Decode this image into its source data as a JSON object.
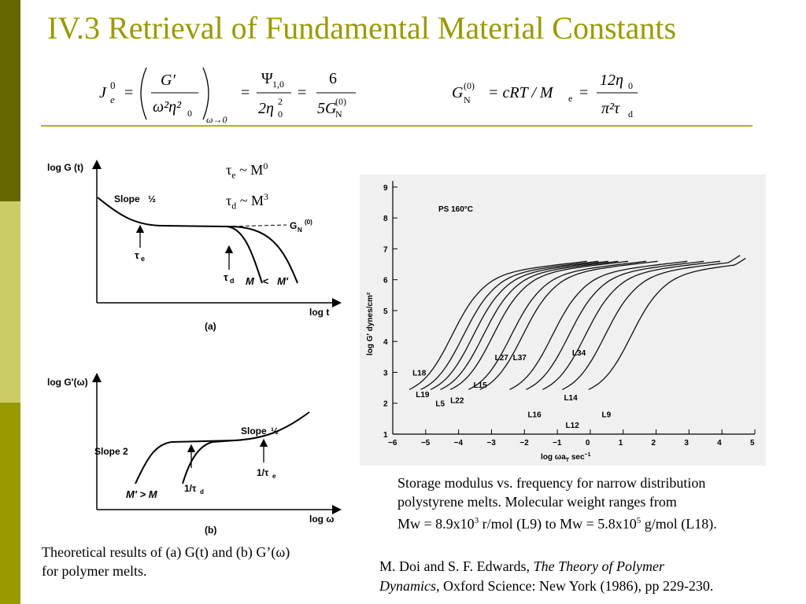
{
  "title": "IV.3 Retrieval of Fundamental Material Constants",
  "colors": {
    "title": "#999900",
    "rule": "#b3b300",
    "sidebar": [
      "#666600",
      "#cccc66",
      "#999900"
    ]
  },
  "equation1": {
    "lhs": "J",
    "lhs_sup": "0",
    "lhs_sub": "e",
    "frac_num": "G′",
    "frac_den": "ω²η²",
    "frac_den_sub": "0",
    "limit": "ω→0",
    "psi": "Ψ",
    "psi_sub": "1,0",
    "psi_den": "2η",
    "psi_den_sup": "2",
    "psi_den_sub": "0",
    "six": "6",
    "five_g": "5G",
    "five_g_sub": "N",
    "five_g_sup": "(0)"
  },
  "equation2": {
    "g": "G",
    "g_sub": "N",
    "g_sup": "(0)",
    "rhs": "= cRT / M",
    "m_sub": "e",
    "num": "12η",
    "num_sub": "0",
    "den": "π²τ",
    "den_sub": "d"
  },
  "scaling": {
    "tau_e": "τ",
    "tau_e_sub": "e",
    "tau_e_rel": " ~ M",
    "tau_e_sup": "0",
    "tau_d": "τ",
    "tau_d_sub": "d",
    "tau_d_rel": " ~ M",
    "tau_d_sup": "3"
  },
  "figure_a": {
    "ylabel": "log G (t)",
    "xlabel": "log t",
    "panel": "(a)",
    "slope_label": "Slope",
    "slope_frac": "½",
    "plateau_label": "G",
    "plateau_sub": "N",
    "plateau_sup": "(0)",
    "tau_e": "τ",
    "tau_e_sub": "e",
    "tau_d": "τ",
    "tau_d_sub": "d",
    "mm": "M   <   M′"
  },
  "figure_b": {
    "ylabel": "log G′(ω)",
    "xlabel": "log ω",
    "panel": "(b)",
    "slope2_label": "Slope 2",
    "slope_half_label": "Slope",
    "slope_half_frac": "½",
    "one_tau_d": "1/τ",
    "one_tau_d_sub": "d",
    "one_tau_e": "1/τ",
    "one_tau_e_sub": "e",
    "mm": "M′ > M"
  },
  "figure_c": {
    "ylabel": "log G′ dynes/cm²",
    "xlabel": "log ωa",
    "xlabel_sub": "T",
    "xlabel_unit": "sec",
    "xlabel_unit_sup": "−1",
    "annotation": "PS 160°C",
    "x_ticks": [
      "−6",
      "−5",
      "−4",
      "−3",
      "−2",
      "−1",
      "0",
      "1",
      "2",
      "3",
      "4",
      "5"
    ],
    "y_ticks": [
      "1",
      "2",
      "3",
      "4",
      "5",
      "6",
      "7",
      "8",
      "9"
    ],
    "series_labels": [
      "L18",
      "L19",
      "L5",
      "L22",
      "L15",
      "L27",
      "L37",
      "L16",
      "L34",
      "L14",
      "L12",
      "L9"
    ]
  },
  "caption_left": {
    "line1": "Theoretical results of (a) G(t) and (b) G’(ω)",
    "line2": "for polymer melts."
  },
  "caption_right": {
    "line1": "Storage modulus vs. frequency for narrow distribution",
    "line2": "polystyrene melts. Molecular weight ranges from",
    "line3a": "Mw = 8.9x10",
    "line3a_sup": "3",
    "line3b": " r/mol (L9) to Mw = 5.8x10",
    "line3b_sup": "5",
    "line3c": " g/mol (L18)."
  },
  "reference": {
    "authors": "M. Doi and S. F. Edwards, ",
    "book_title_1": "The Theory of Polymer",
    "book_title_2": "Dynamics",
    "publisher": ", Oxford Science: New York (1986), pp 229-230."
  }
}
